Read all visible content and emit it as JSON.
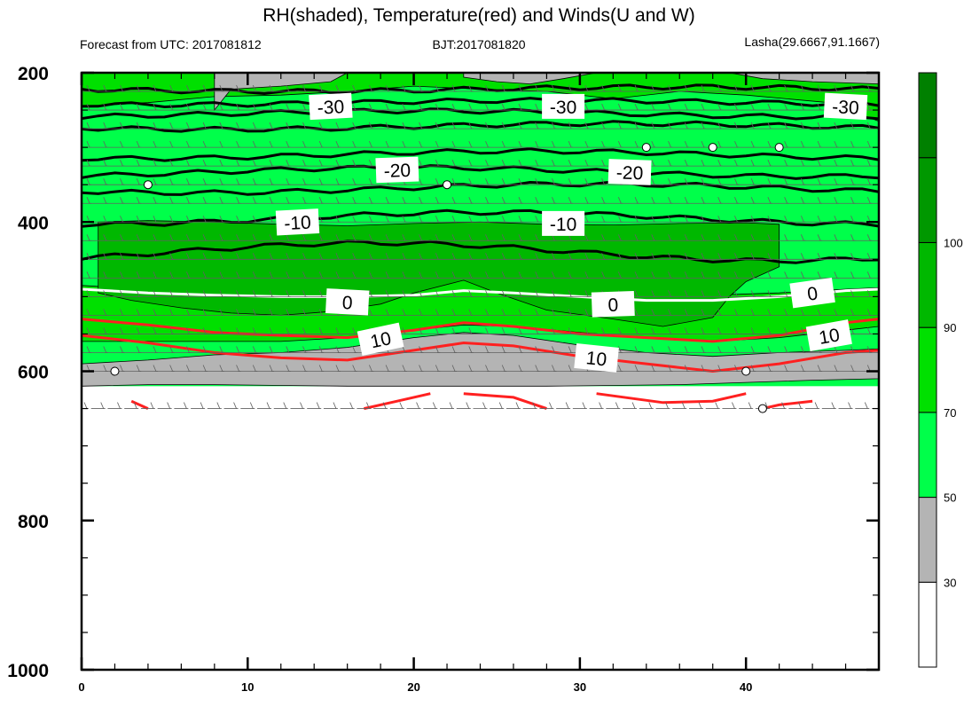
{
  "chart_data": {
    "type": "heatmap",
    "title": "RH(shaded), Temperature(red) and Winds(U and W)",
    "subtitle_left": "Forecast from UTC: 2017081812",
    "subtitle_center": "BJT:2017081820",
    "subtitle_right": "Lasha(29.6667,91.1667)",
    "xlim": [
      0,
      48
    ],
    "ylim": [
      1000,
      200
    ],
    "x_ticks": [
      "0",
      "10",
      "20",
      "30",
      "40"
    ],
    "y_ticks": [
      "200",
      "400",
      "600",
      "800",
      "1000"
    ],
    "colorbar": {
      "labels": [
        "30",
        "50",
        "70",
        "90",
        "100"
      ],
      "colors": [
        "#ffffff",
        "#b4b4b4",
        "#00ff4a",
        "#00e000",
        "#00b800",
        "#009800",
        "#008000"
      ]
    },
    "rh_bands": [
      {
        "level": "30-50",
        "color": "#b4b4b4",
        "top": [
          [
            0,
            590
          ],
          [
            4,
            585
          ],
          [
            8,
            578
          ],
          [
            12,
            575
          ],
          [
            16,
            568
          ],
          [
            20,
            555
          ],
          [
            23,
            548
          ],
          [
            26,
            552
          ],
          [
            30,
            565
          ],
          [
            34,
            575
          ],
          [
            38,
            580
          ],
          [
            42,
            575
          ],
          [
            46,
            572
          ],
          [
            48,
            570
          ]
        ],
        "bottom": [
          [
            0,
            620
          ],
          [
            4,
            618
          ],
          [
            8,
            618
          ],
          [
            12,
            619
          ],
          [
            16,
            620
          ],
          [
            20,
            620
          ],
          [
            24,
            620
          ],
          [
            28,
            620
          ],
          [
            32,
            619
          ],
          [
            36,
            618
          ],
          [
            40,
            615
          ],
          [
            44,
            612
          ],
          [
            48,
            610
          ]
        ]
      },
      {
        "level": "70-90",
        "color": "#00e000",
        "top": [
          [
            0,
            485
          ],
          [
            4,
            490
          ],
          [
            8,
            495
          ],
          [
            12,
            497
          ],
          [
            16,
            496
          ],
          [
            20,
            488
          ],
          [
            23,
            478
          ],
          [
            26,
            482
          ],
          [
            30,
            495
          ],
          [
            34,
            500
          ],
          [
            38,
            498
          ],
          [
            42,
            495
          ],
          [
            46,
            490
          ],
          [
            48,
            488
          ]
        ],
        "bottom": [
          [
            0,
            560
          ],
          [
            4,
            560
          ],
          [
            8,
            560
          ],
          [
            12,
            560
          ],
          [
            16,
            555
          ],
          [
            20,
            545
          ],
          [
            23,
            538
          ],
          [
            26,
            540
          ],
          [
            30,
            548
          ],
          [
            34,
            555
          ],
          [
            38,
            560
          ],
          [
            42,
            555
          ],
          [
            46,
            545
          ],
          [
            48,
            540
          ]
        ]
      },
      {
        "level": "90-100",
        "color": "#00b800",
        "top": [
          [
            1,
            400
          ],
          [
            4,
            398
          ],
          [
            8,
            400
          ],
          [
            12,
            403
          ],
          [
            16,
            405
          ],
          [
            20,
            402
          ],
          [
            24,
            400
          ],
          [
            28,
            403
          ],
          [
            32,
            404
          ],
          [
            36,
            402
          ],
          [
            40,
            401
          ],
          [
            42,
            403
          ],
          [
            42,
            460
          ],
          [
            40,
            480
          ],
          [
            39,
            500
          ],
          [
            38,
            528
          ],
          [
            35,
            540
          ],
          [
            32,
            530
          ],
          [
            28,
            518
          ],
          [
            25,
            495
          ],
          [
            23,
            478
          ],
          [
            20,
            495
          ],
          [
            18,
            510
          ],
          [
            15,
            520
          ],
          [
            12,
            525
          ],
          [
            9,
            522
          ],
          [
            6,
            515
          ],
          [
            3,
            505
          ],
          [
            1,
            495
          ]
        ],
        "bottom": []
      },
      {
        "level": "100+",
        "color": "#008000",
        "top": [],
        "bottom": []
      }
    ],
    "isotherms": [
      {
        "value": -30,
        "color": "#000000",
        "levels": [
          [
            0,
            225
          ],
          [
            0,
            240
          ],
          [
            0,
            255
          ],
          [
            0,
            270
          ]
        ],
        "labels_at": [
          15,
          29,
          46
        ]
      },
      {
        "value": -20,
        "color": "#000000",
        "levels": [
          [
            0,
            315
          ],
          [
            0,
            335
          ]
        ],
        "labels_at": [
          19,
          33
        ]
      },
      {
        "value": -10,
        "color": "#000000",
        "levels": [
          [
            0,
            395
          ],
          [
            0,
            440
          ]
        ],
        "labels_at": [
          13,
          29
        ]
      },
      {
        "value": 0,
        "color": "#ffffff",
        "levels": [
          [
            0,
            490
          ]
        ],
        "labels_at": [
          16,
          32,
          44
        ]
      },
      {
        "value": 10,
        "color": "#ff2020",
        "levels": [
          [
            0,
            530
          ]
        ],
        "labels_at": [
          18,
          31,
          45
        ]
      }
    ],
    "contour_labels": [
      "-30",
      "-30",
      "-30",
      "-20",
      "-20",
      "-10",
      "-10",
      "0",
      "0",
      "0",
      "10",
      "10",
      "10"
    ],
    "wind_levels": [
      225,
      250,
      275,
      300,
      325,
      350,
      375,
      400,
      425,
      450,
      475,
      500,
      525,
      550,
      575,
      600,
      650
    ],
    "wind_calm_points": [
      [
        4,
        350
      ],
      [
        22,
        350
      ],
      [
        34,
        300
      ],
      [
        38,
        300
      ],
      [
        42,
        300
      ],
      [
        2,
        600
      ],
      [
        40,
        600
      ],
      [
        41,
        650
      ]
    ]
  }
}
